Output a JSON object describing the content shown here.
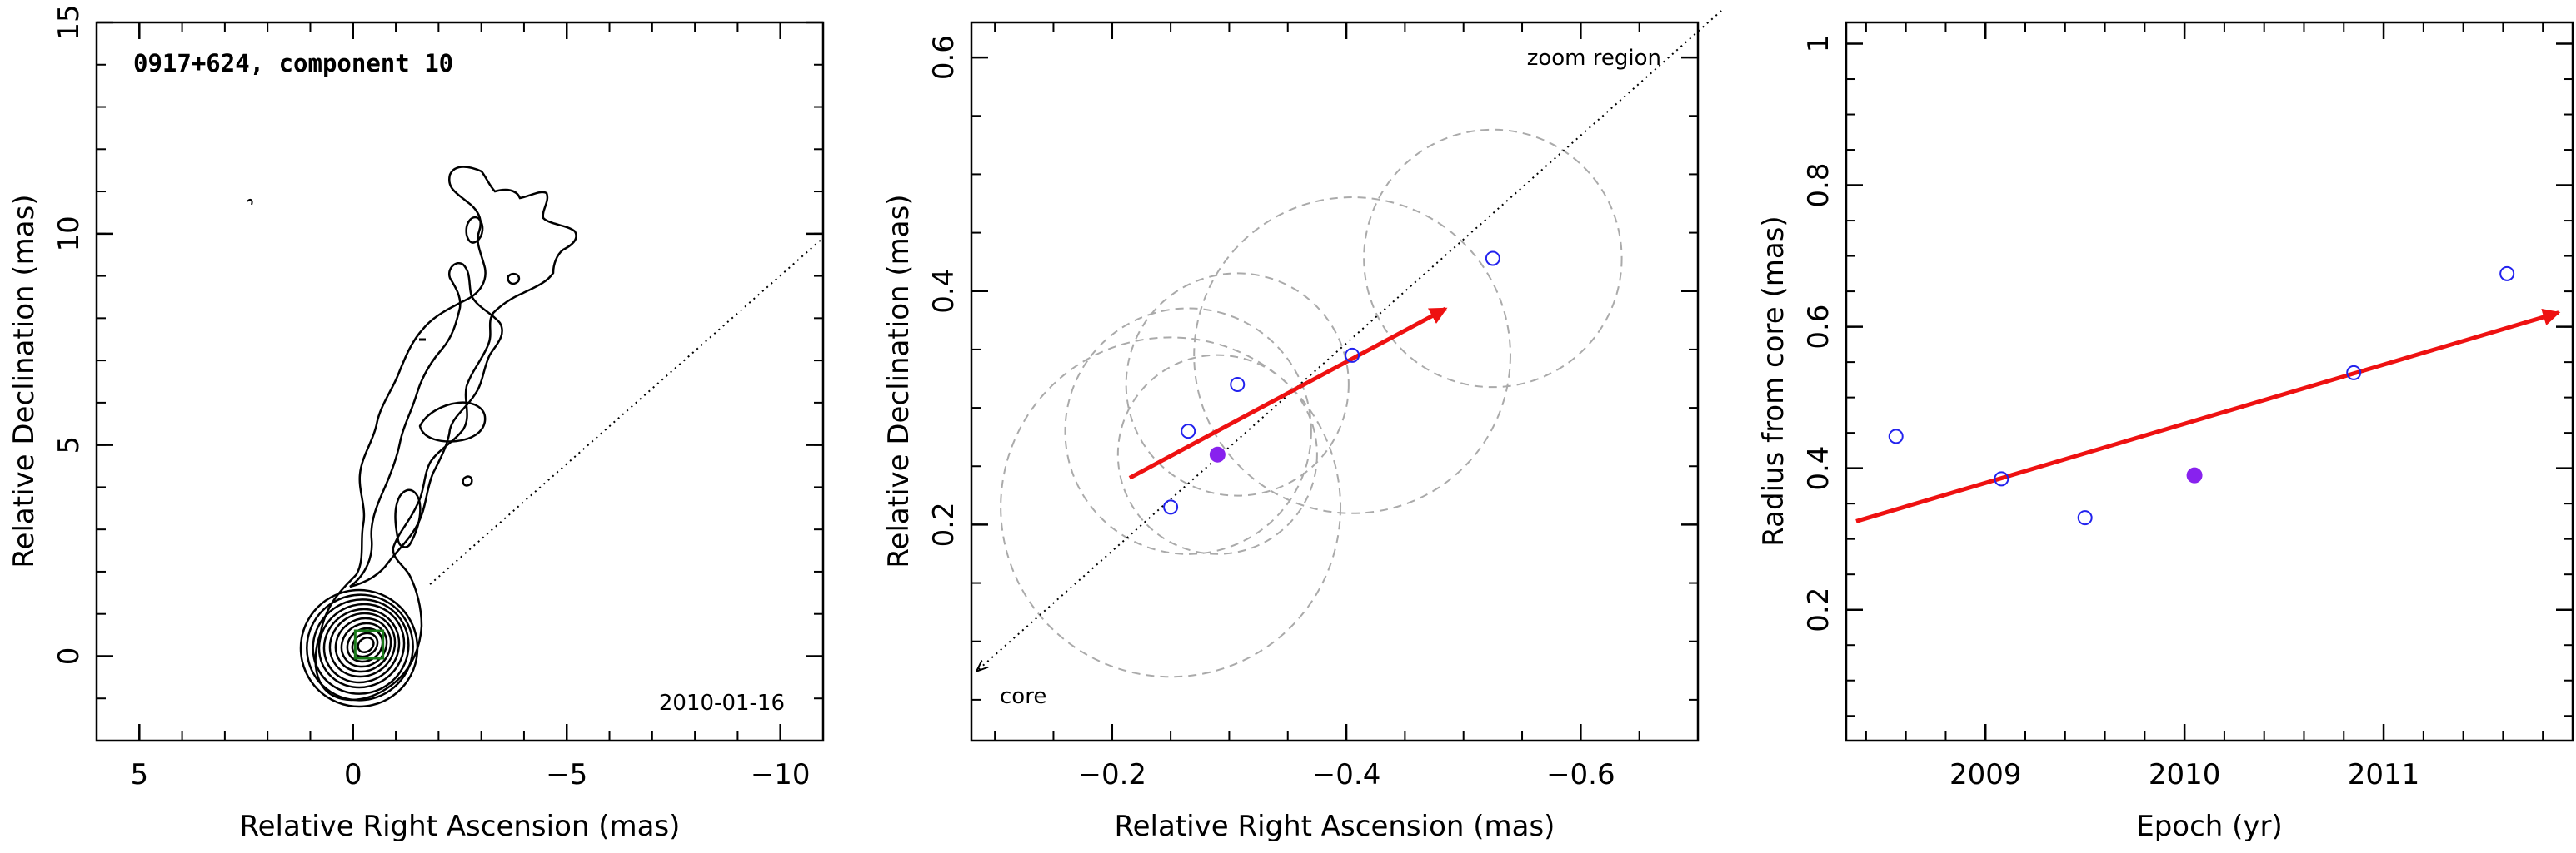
{
  "chart_data": [
    {
      "type": "contour",
      "title": "0917+624, component 10",
      "date_label": "2010-01-16",
      "xlabel": "Relative Right Ascension (mas)",
      "ylabel": "Relative Declination (mas)",
      "xlim": [
        6,
        -11
      ],
      "ylim": [
        -2,
        15
      ],
      "xticks": [
        5,
        0,
        -5,
        -10
      ],
      "yticks": [
        0,
        5,
        10,
        15
      ],
      "tick_labels_x": [
        "5",
        "0",
        "−5",
        "−10"
      ],
      "tick_labels_y": [
        "0",
        "5",
        "10",
        "15"
      ],
      "zoom_box": {
        "x": [
          -0.05,
          -0.7
        ],
        "y": [
          -0.05,
          0.6
        ],
        "color": "#1a7a1a"
      },
      "direction_line": {
        "from": [
          -1.8,
          1.7
        ],
        "to": [
          -11,
          9.9
        ]
      }
    },
    {
      "type": "scatter",
      "xlabel": "Relative Right Ascension (mas)",
      "ylabel": "Relative Declination (mas)",
      "annotation_top": "zoom region",
      "annotation_bottom": "core",
      "xlim": [
        -0.08,
        -0.7
      ],
      "ylim": [
        0.015,
        0.63
      ],
      "xticks": [
        -0.2,
        -0.4,
        -0.6
      ],
      "yticks": [
        0.2,
        0.4,
        0.6
      ],
      "tick_labels_x": [
        "−0.2",
        "−0.4",
        "−0.6"
      ],
      "tick_labels_y": [
        "0.2",
        "0.4",
        "0.6"
      ],
      "points_open": [
        {
          "x": -0.25,
          "y": 0.215
        },
        {
          "x": -0.265,
          "y": 0.28
        },
        {
          "x": -0.307,
          "y": 0.32
        },
        {
          "x": -0.405,
          "y": 0.345
        },
        {
          "x": -0.525,
          "y": 0.428
        }
      ],
      "point_filled": {
        "x": -0.29,
        "y": 0.26
      },
      "circles": [
        {
          "x": -0.25,
          "y": 0.215,
          "r": 0.145
        },
        {
          "x": -0.265,
          "y": 0.28,
          "r": 0.105
        },
        {
          "x": -0.307,
          "y": 0.32,
          "r": 0.095
        },
        {
          "x": -0.29,
          "y": 0.26,
          "r": 0.085
        },
        {
          "x": -0.405,
          "y": 0.345,
          "r": 0.135
        },
        {
          "x": -0.525,
          "y": 0.428,
          "r": 0.11
        }
      ],
      "dotted_line": {
        "from": [
          -0.72,
          0.64
        ],
        "to": [
          -0.085,
          0.075
        ]
      },
      "arrow": {
        "from": [
          -0.215,
          0.24
        ],
        "to": [
          -0.485,
          0.385
        ],
        "color": "#ee1111"
      },
      "colors": {
        "open_marker": "#2222ee",
        "filled_marker": "#8822ee",
        "circles": "#aaaaaa"
      }
    },
    {
      "type": "scatter",
      "xlabel": "Epoch (yr)",
      "ylabel": "Radius from core (mas)",
      "xlim": [
        2008.3,
        2011.95
      ],
      "ylim": [
        0.015,
        1.03
      ],
      "xticks": [
        2009,
        2010,
        2011
      ],
      "yticks": [
        0.2,
        0.4,
        0.6,
        0.8,
        1
      ],
      "tick_labels_x": [
        "2009",
        "2010",
        "2011"
      ],
      "tick_labels_y": [
        "0.2",
        "0.4",
        "0.6",
        "0.8",
        "1"
      ],
      "points_open": [
        {
          "x": 2008.55,
          "y": 0.445
        },
        {
          "x": 2009.08,
          "y": 0.385
        },
        {
          "x": 2009.5,
          "y": 0.33
        },
        {
          "x": 2010.85,
          "y": 0.535
        },
        {
          "x": 2011.62,
          "y": 0.675
        }
      ],
      "point_filled": {
        "x": 2010.05,
        "y": 0.39
      },
      "arrow": {
        "from": [
          2008.35,
          0.325
        ],
        "to": [
          2011.88,
          0.62
        ],
        "color": "#ee1111"
      },
      "colors": {
        "open_marker": "#2222ee",
        "filled_marker": "#8822ee"
      }
    }
  ]
}
